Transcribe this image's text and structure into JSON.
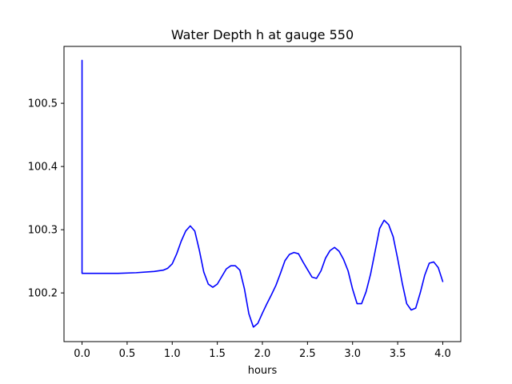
{
  "chart_data": {
    "type": "line",
    "title": "Water Depth h at gauge 550",
    "xlabel": "hours",
    "ylabel": "",
    "xlim": [
      -0.2,
      4.2
    ],
    "ylim": [
      100.123,
      100.59
    ],
    "xticks": [
      0.0,
      0.5,
      1.0,
      1.5,
      2.0,
      2.5,
      3.0,
      3.5,
      4.0
    ],
    "xtick_labels": [
      "0.0",
      "0.5",
      "1.0",
      "1.5",
      "2.0",
      "2.5",
      "3.0",
      "3.5",
      "4.0"
    ],
    "yticks": [
      100.2,
      100.3,
      100.4,
      100.5
    ],
    "ytick_labels": [
      "100.2",
      "100.3",
      "100.4",
      "100.5"
    ],
    "grid": false,
    "series": [
      {
        "color": "#0000ff",
        "x": [
          0.0,
          0.0,
          0.05,
          0.2,
          0.4,
          0.6,
          0.8,
          0.9,
          0.95,
          1.0,
          1.05,
          1.1,
          1.15,
          1.2,
          1.25,
          1.3,
          1.35,
          1.4,
          1.45,
          1.5,
          1.55,
          1.6,
          1.65,
          1.7,
          1.75,
          1.8,
          1.85,
          1.9,
          1.95,
          2.0,
          2.05,
          2.1,
          2.15,
          2.2,
          2.25,
          2.3,
          2.35,
          2.4,
          2.45,
          2.5,
          2.55,
          2.6,
          2.65,
          2.7,
          2.75,
          2.8,
          2.85,
          2.9,
          2.95,
          3.0,
          3.05,
          3.1,
          3.15,
          3.2,
          3.25,
          3.3,
          3.35,
          3.4,
          3.45,
          3.5,
          3.55,
          3.6,
          3.65,
          3.7,
          3.75,
          3.8,
          3.85,
          3.9,
          3.95,
          4.0
        ],
        "y": [
          100.568,
          100.231,
          100.231,
          100.231,
          100.231,
          100.232,
          100.234,
          100.236,
          100.239,
          100.246,
          100.262,
          100.282,
          100.298,
          100.306,
          100.298,
          100.268,
          100.233,
          100.214,
          100.209,
          100.214,
          100.226,
          100.238,
          100.243,
          100.243,
          100.236,
          100.207,
          100.167,
          100.146,
          100.152,
          100.168,
          100.183,
          100.197,
          100.212,
          100.231,
          100.251,
          100.261,
          100.264,
          100.262,
          100.249,
          100.237,
          100.225,
          100.223,
          100.235,
          100.255,
          100.267,
          100.272,
          100.266,
          100.253,
          100.235,
          100.206,
          100.183,
          100.183,
          100.202,
          100.23,
          100.266,
          100.302,
          100.315,
          100.308,
          100.289,
          100.254,
          100.216,
          100.183,
          100.173,
          100.176,
          100.2,
          100.228,
          100.247,
          100.249,
          100.24,
          100.218
        ]
      }
    ]
  }
}
